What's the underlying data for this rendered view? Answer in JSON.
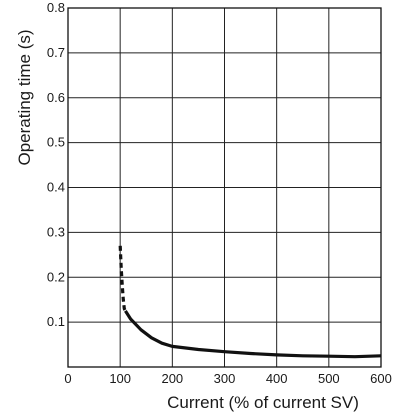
{
  "chart_data": {
    "type": "line",
    "title": "",
    "xlabel": "Current (% of current SV)",
    "ylabel": "Operating time (s)",
    "xlim": [
      0,
      600
    ],
    "ylim": [
      0,
      0.8
    ],
    "x_ticks": [
      0,
      100,
      200,
      300,
      400,
      500,
      600
    ],
    "y_ticks": [
      0.1,
      0.2,
      0.3,
      0.4,
      0.5,
      0.6,
      0.7,
      0.8
    ],
    "grid": true,
    "series": [
      {
        "style": "dashed",
        "points": [
          [
            100,
            0.27
          ],
          [
            102,
            0.22
          ],
          [
            104,
            0.18
          ],
          [
            106,
            0.15
          ],
          [
            108,
            0.13
          ],
          [
            110,
            0.125
          ]
        ]
      },
      {
        "style": "solid",
        "points": [
          [
            110,
            0.125
          ],
          [
            120,
            0.107
          ],
          [
            140,
            0.083
          ],
          [
            160,
            0.065
          ],
          [
            180,
            0.053
          ],
          [
            200,
            0.046
          ],
          [
            250,
            0.039
          ],
          [
            300,
            0.034
          ],
          [
            350,
            0.03
          ],
          [
            400,
            0.027
          ],
          [
            450,
            0.025
          ],
          [
            500,
            0.024
          ],
          [
            550,
            0.023
          ],
          [
            600,
            0.025
          ]
        ]
      }
    ]
  }
}
